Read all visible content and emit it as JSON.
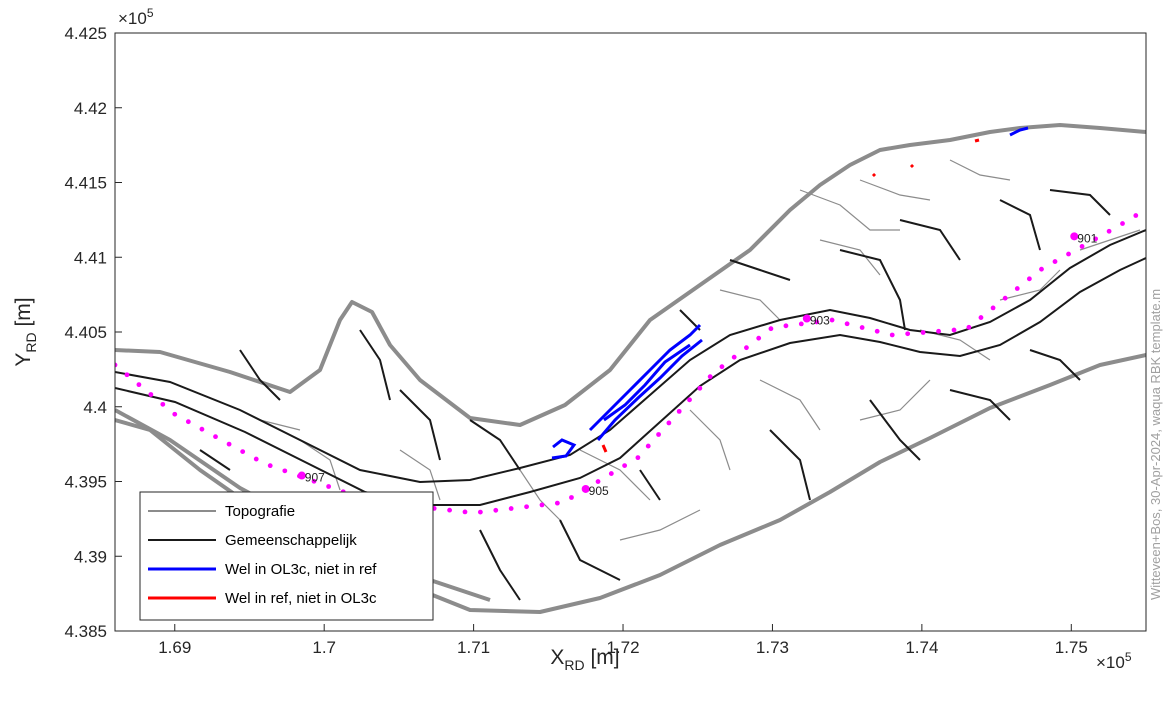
{
  "chart_data": {
    "type": "map",
    "xlabel": "X",
    "xlabel_sub": "RD",
    "xlabel_unit": " [m]",
    "ylabel": "Y",
    "ylabel_sub": "RD",
    "ylabel_unit": " [m]",
    "x_multiplier": "×10",
    "y_multiplier": "×10",
    "multiplier_exp": "5",
    "xlim": [
      1.686,
      1.755
    ],
    "ylim": [
      4.385,
      4.425
    ],
    "xticks": [
      "1.69",
      "1.7",
      "1.71",
      "1.72",
      "1.73",
      "1.74",
      "1.75"
    ],
    "yticks": [
      "4.385",
      "4.39",
      "4.395",
      "4.4",
      "4.405",
      "4.41",
      "4.415",
      "4.42",
      "4.425"
    ],
    "legend": {
      "location": "bottom-left",
      "entries": [
        {
          "label": "Topografie",
          "color": "#8c8c8c"
        },
        {
          "label": "Gemeenschappelijk",
          "color": "#1a1a1a"
        },
        {
          "label": "Wel in OL3c, niet in ref",
          "color": "#0000ff"
        },
        {
          "label": "Wel in ref, niet in OL3c",
          "color": "#ff0000"
        }
      ]
    },
    "river_axis_km": {
      "color": "#ff00ff",
      "points": [
        [
          1.686,
          4.4028
        ],
        [
          1.69,
          4.3995
        ],
        [
          1.696,
          4.3962
        ],
        [
          1.703,
          4.3937
        ],
        [
          1.71,
          4.3929
        ],
        [
          1.716,
          4.3936
        ],
        [
          1.721,
          4.3966
        ],
        [
          1.726,
          4.4022
        ],
        [
          1.73,
          4.4053
        ],
        [
          1.734,
          4.4058
        ],
        [
          1.738,
          4.4048
        ],
        [
          1.743,
          4.4052
        ],
        [
          1.748,
          4.4092
        ],
        [
          1.753,
          4.412
        ],
        [
          1.755,
          4.4132
        ]
      ]
    },
    "labeled_markers": [
      {
        "label": "901",
        "x": 1.7502,
        "y": 4.4114
      },
      {
        "label": "903",
        "x": 1.7323,
        "y": 4.4059
      },
      {
        "label": "905",
        "x": 1.7175,
        "y": 4.3945
      },
      {
        "label": "907",
        "x": 1.6985,
        "y": 4.3954
      }
    ],
    "credit": "Witteveen+Bos, 30-Apr-2024, waqua  RBK  template.m"
  }
}
